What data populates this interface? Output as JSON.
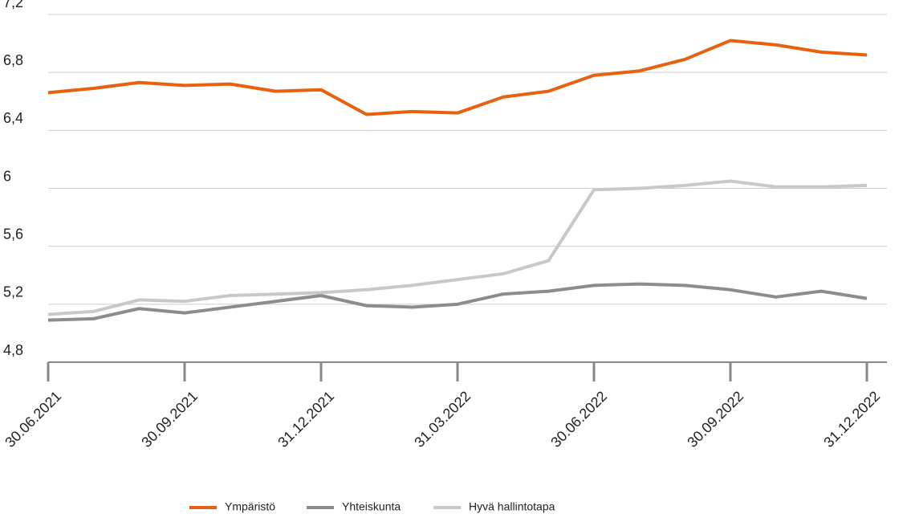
{
  "chart_data": {
    "type": "line",
    "categories": [
      "30.06.2021",
      null,
      null,
      "30.09.2021",
      null,
      null,
      "31.12.2021",
      null,
      null,
      "31.03.2022",
      null,
      null,
      "30.06.2022",
      null,
      null,
      "30.09.2022",
      null,
      null,
      "31.12.2022"
    ],
    "series": [
      {
        "name": "Ympäristö",
        "color": "#e8610e",
        "values": [
          6.66,
          6.69,
          6.73,
          6.71,
          6.72,
          6.67,
          6.68,
          6.51,
          6.53,
          6.52,
          6.63,
          6.67,
          6.78,
          6.81,
          6.89,
          7.02,
          6.99,
          6.94,
          6.92
        ]
      },
      {
        "name": "Yhteiskunta",
        "color": "#8c8c8c",
        "values": [
          5.09,
          5.1,
          5.17,
          5.14,
          5.18,
          5.22,
          5.26,
          5.19,
          5.18,
          5.2,
          5.27,
          5.29,
          5.33,
          5.34,
          5.33,
          5.3,
          5.25,
          5.29,
          5.24
        ]
      },
      {
        "name": "Hyvä hallintotapa",
        "color": "#c8c8c8",
        "values": [
          5.13,
          5.15,
          5.23,
          5.22,
          5.26,
          5.27,
          5.28,
          5.3,
          5.33,
          5.37,
          5.41,
          5.5,
          5.99,
          6.0,
          6.02,
          6.05,
          6.01,
          6.01,
          6.02
        ]
      }
    ],
    "ylim": [
      4.8,
      7.2
    ],
    "yticks": [
      {
        "value": 4.8,
        "label": "4,8"
      },
      {
        "value": 5.2,
        "label": "5,2"
      },
      {
        "value": 5.6,
        "label": "5,6"
      },
      6,
      {
        "value": 6.4,
        "label": "6,4"
      },
      {
        "value": 6.8,
        "label": "6,8"
      },
      {
        "value": 7.2,
        "label": "7,2"
      }
    ],
    "grid": true,
    "legend": "bottom"
  }
}
